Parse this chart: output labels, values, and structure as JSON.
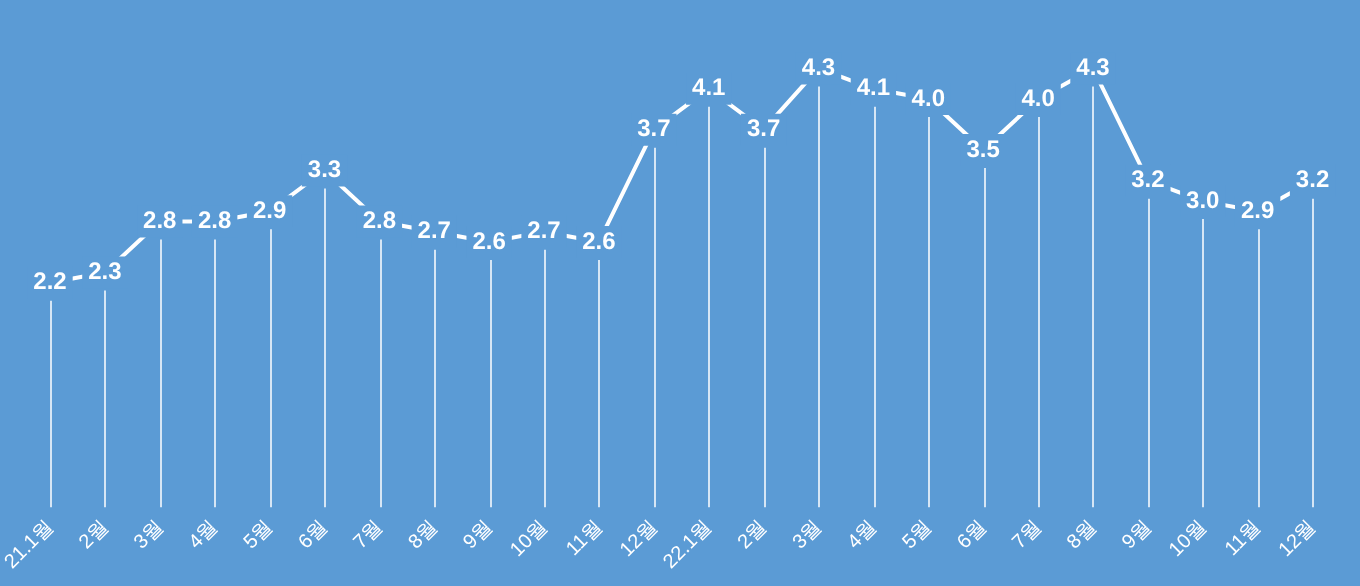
{
  "chart_data": {
    "type": "line",
    "categories": [
      "21.1월",
      "2월",
      "3월",
      "4월",
      "5월",
      "6월",
      "7월",
      "8월",
      "9월",
      "10월",
      "11월",
      "12월",
      "22.1월",
      "2월",
      "3월",
      "4월",
      "5월",
      "6월",
      "7월",
      "8월",
      "9월",
      "10월",
      "11월",
      "12월"
    ],
    "values": [
      2.2,
      2.3,
      2.8,
      2.8,
      2.9,
      3.3,
      2.8,
      2.7,
      2.6,
      2.7,
      2.6,
      3.7,
      4.1,
      3.7,
      4.3,
      4.1,
      4.0,
      3.5,
      4.0,
      4.3,
      3.2,
      3.0,
      2.9,
      3.2
    ],
    "value_labels": [
      "2.2",
      "2.3",
      "2.8",
      "2.8",
      "2.9",
      "3.3",
      "2.8",
      "2.7",
      "2.6",
      "2.7",
      "2.6",
      "3.7",
      "4.1",
      "3.7",
      "4.3",
      "4.1",
      "4.0",
      "3.5",
      "4.0",
      "4.3",
      "3.2",
      "3.0",
      "2.9",
      "3.2"
    ],
    "color": "#ffffff",
    "grid": "x",
    "marker": "square",
    "line_style": "solid",
    "tick_labels": "x"
  }
}
